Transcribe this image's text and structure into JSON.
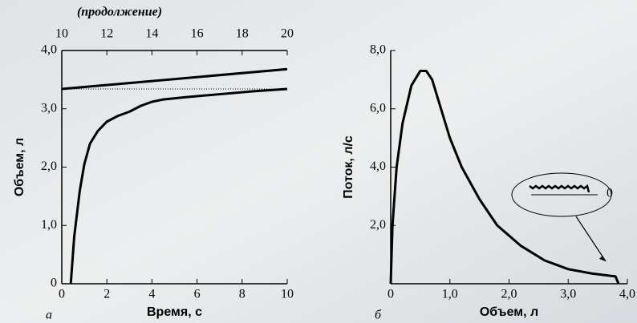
{
  "chart_data": [
    {
      "type": "line",
      "panel_label": "а",
      "x_label": "Время, с",
      "y_label": "Объем, л",
      "x2_label": "(продолжение)",
      "xlim": [
        0,
        10
      ],
      "xticks": [
        0,
        2,
        4,
        6,
        8,
        10
      ],
      "x2lim": [
        10,
        20
      ],
      "x2ticks": [
        10,
        12,
        14,
        16,
        18,
        20
      ],
      "ylim": [
        0,
        4
      ],
      "yticks": [
        {
          "value": 0,
          "label": "0"
        },
        {
          "value": 1,
          "label": "1,0"
        },
        {
          "value": 2,
          "label": "2,0"
        },
        {
          "value": 3,
          "label": "3,0"
        },
        {
          "value": 4,
          "label": "4,0"
        }
      ],
      "series": [
        {
          "color": "#000000",
          "x": [
            0.4,
            0.55,
            0.8,
            1.0,
            1.25,
            1.6,
            2.0,
            2.5,
            3.0,
            3.5,
            4.0,
            4.5,
            5.5,
            7.0,
            8.5,
            10.0
          ],
          "values": [
            0,
            0.8,
            1.6,
            2.05,
            2.4,
            2.62,
            2.78,
            2.88,
            2.95,
            3.05,
            3.12,
            3.16,
            3.2,
            3.25,
            3.3,
            3.34
          ]
        },
        {
          "color": "#000000",
          "axis": "x2",
          "x": [
            10,
            20
          ],
          "values": [
            3.34,
            3.68
          ]
        },
        {
          "color": "#000000",
          "dash": "dotted",
          "x": [
            0,
            10
          ],
          "values": [
            3.34,
            3.34
          ]
        }
      ]
    },
    {
      "type": "line",
      "panel_label": "б",
      "x_label": "Объем, л",
      "y_label": "Поток, л/с",
      "xlim": [
        0,
        4
      ],
      "xticks": [
        {
          "value": 0,
          "label": "0"
        },
        {
          "value": 1,
          "label": "1,0"
        },
        {
          "value": 2,
          "label": "2,0"
        },
        {
          "value": 3,
          "label": "3,0"
        },
        {
          "value": 4,
          "label": "4,0"
        }
      ],
      "ylim": [
        0,
        8
      ],
      "yticks": [
        {
          "value": 2,
          "label": "2,0"
        },
        {
          "value": 4,
          "label": "4,0"
        },
        {
          "value": 6,
          "label": "6,0"
        },
        {
          "value": 8,
          "label": "8,0"
        }
      ],
      "annotation": "0",
      "series": [
        {
          "color": "#000000",
          "x": [
            0,
            0.03,
            0.1,
            0.2,
            0.35,
            0.5,
            0.6,
            0.7,
            0.85,
            1.0,
            1.2,
            1.5,
            1.8,
            2.2,
            2.6,
            3.0,
            3.4,
            3.8,
            3.85
          ],
          "values": [
            0,
            2,
            4,
            5.5,
            6.8,
            7.3,
            7.3,
            7.0,
            6.0,
            5.0,
            4.0,
            2.9,
            2.0,
            1.3,
            0.8,
            0.5,
            0.35,
            0.25,
            0
          ]
        }
      ]
    }
  ]
}
